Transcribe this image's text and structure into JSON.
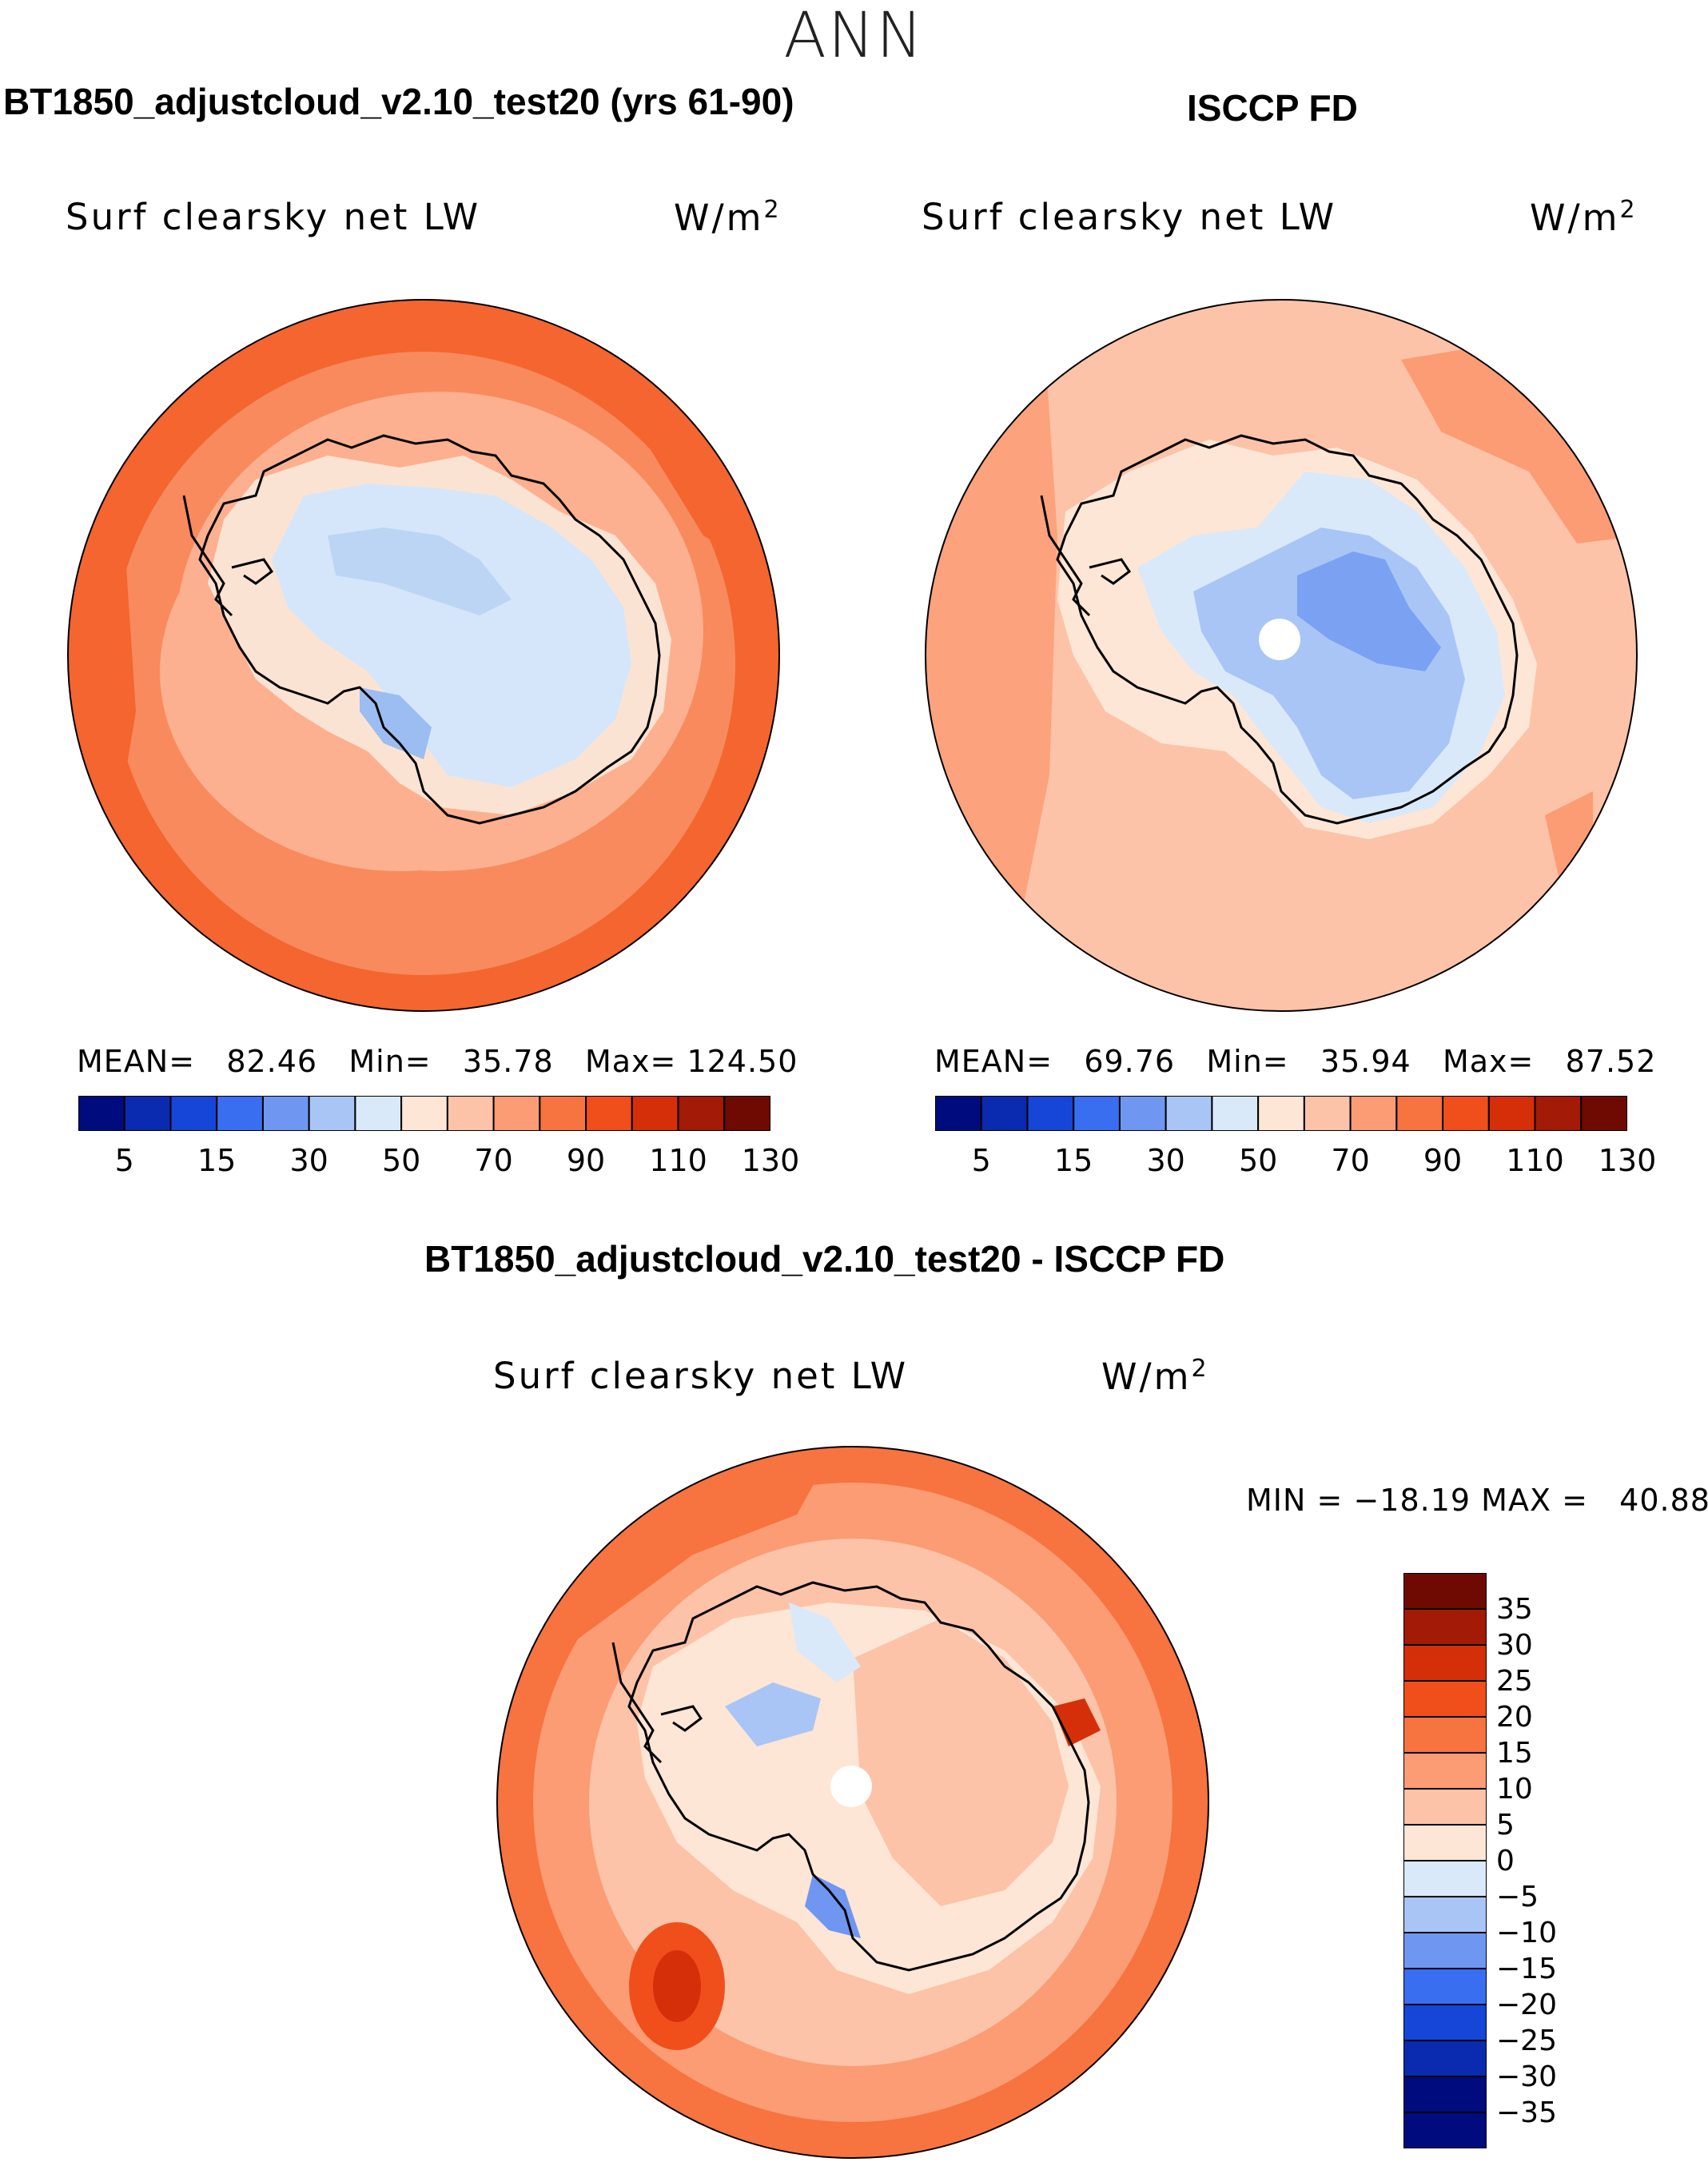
{
  "super_title": "ANN",
  "colors": {
    "ocean_dark": "#f4652f",
    "ocean_mid": "#f88a5e",
    "ocean_light": "#fcb08f",
    "ice": "#fbe3d3",
    "ice_blue": "#d5e6fa",
    "interior_blue": "#bcd5f5",
    "deep_blue": "#9bbdf1",
    "coast": "#000000"
  },
  "panels": [
    {
      "title": "BT1850_adjustcloud_v2.10_test20 (yrs 61-90)",
      "variable": "Surf clearsky net LW",
      "units": "W/m",
      "units_exp": "2",
      "stats": {
        "mean_label": "MEAN=",
        "mean": "82.46",
        "min_label": "Min=",
        "min": "35.78",
        "max_label": "Max=",
        "max": "124.50"
      }
    },
    {
      "title": "ISCCP FD",
      "variable": "Surf clearsky net LW",
      "units": "W/m",
      "units_exp": "2",
      "stats": {
        "mean_label": "MEAN=",
        "mean": "69.76",
        "min_label": "Min=",
        "min": "35.94",
        "max_label": "Max=",
        "max": "87.52"
      }
    },
    {
      "title": "BT1850_adjustcloud_v2.10_test20 - ISCCP FD",
      "variable": "Surf clearsky net LW",
      "units": "W/m",
      "units_exp": "2",
      "stats": {
        "min_label": "MIN =",
        "min": "−18.19",
        "max_label": "MAX =",
        "max": "40.88"
      }
    }
  ],
  "colorbar_h": {
    "colors": [
      "#000c7d",
      "#0a2bb0",
      "#1546d8",
      "#3a6ef0",
      "#6f97f2",
      "#a9c5f6",
      "#d9e9fa",
      "#fde6d5",
      "#fcc3a8",
      "#fb9c74",
      "#f7733f",
      "#f04e1b",
      "#d52f0a",
      "#a31a06",
      "#6e0a02"
    ],
    "tick_labels": [
      "5",
      "15",
      "30",
      "50",
      "70",
      "90",
      "110",
      "130"
    ]
  },
  "colorbar_v": {
    "colors": [
      "#6e0a02",
      "#a31a06",
      "#d52f0a",
      "#f04e1b",
      "#f7733f",
      "#fb9c74",
      "#fcc3a8",
      "#fde6d5",
      "#d9e9fa",
      "#a9c5f6",
      "#6f97f2",
      "#3a6ef0",
      "#1546d8",
      "#0a2bb0",
      "#000c7d",
      "#000c7d"
    ],
    "tick_labels": [
      "35",
      "30",
      "25",
      "20",
      "15",
      "10",
      "5",
      "0",
      "−5",
      "−10",
      "−15",
      "−20",
      "−25",
      "−30",
      "−35"
    ]
  }
}
